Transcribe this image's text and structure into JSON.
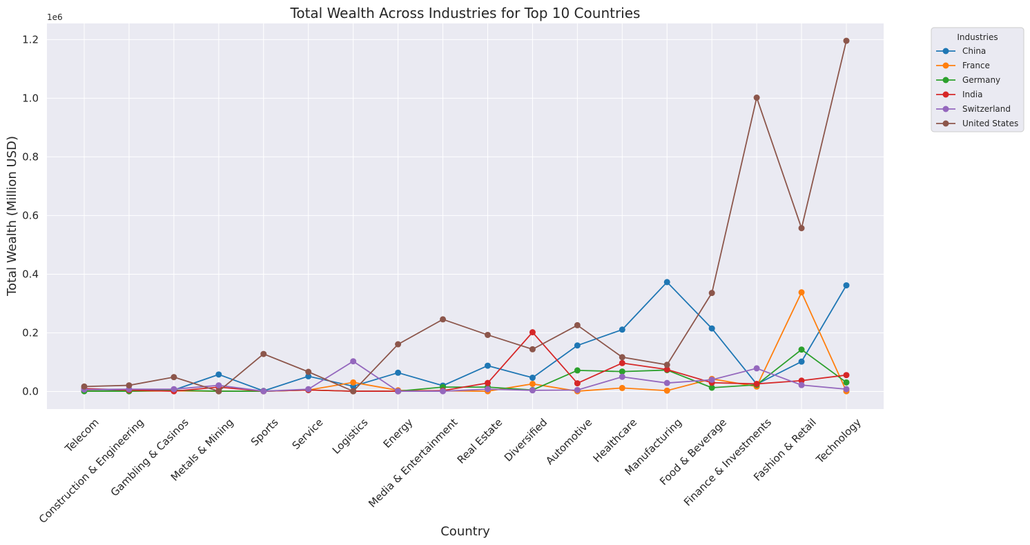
{
  "chart_data": {
    "type": "line",
    "title": "Total Wealth Across Industries for Top 10 Countries",
    "xlabel": "Country",
    "ylabel": "Total Wealth (Million USD)",
    "y_offset_label": "1e6",
    "y_ticks": [
      0.0,
      0.2,
      0.4,
      0.6,
      0.8,
      1.0,
      1.2
    ],
    "ylim": [
      -60000,
      1255000
    ],
    "grid": true,
    "legend": {
      "title": "Industries",
      "placement": "outside upper right"
    },
    "categories": [
      "Telecom",
      "Construction & Engineering",
      "Gambling & Casinos",
      "Metals & Mining",
      "Sports",
      "Service",
      "Logistics",
      "Energy",
      "Media & Entertainment",
      "Real Estate",
      "Diversified",
      "Automotive",
      "Healthcare",
      "Manufacturing",
      "Food & Beverage",
      "Finance & Investments",
      "Fashion & Retail",
      "Technology"
    ],
    "series": [
      {
        "name": "China",
        "color": "#1f77b4",
        "values": [
          3000,
          3000,
          5000,
          58000,
          2000,
          52000,
          18000,
          64000,
          20000,
          88000,
          47000,
          157000,
          211000,
          373000,
          215000,
          25000,
          102000,
          362000
        ]
      },
      {
        "name": "France",
        "color": "#ff7f0e",
        "values": [
          2000,
          1000,
          2000,
          1000,
          1000,
          5000,
          31000,
          4000,
          2000,
          1000,
          26000,
          1000,
          12000,
          3000,
          43000,
          17000,
          338000,
          1000
        ]
      },
      {
        "name": "Germany",
        "color": "#2ca02c",
        "values": [
          1000,
          1000,
          4000,
          1000,
          1000,
          5000,
          1000,
          1000,
          15000,
          15000,
          5000,
          72000,
          68000,
          73000,
          13000,
          23000,
          143000,
          31000
        ]
      },
      {
        "name": "India",
        "color": "#d62728",
        "values": [
          10000,
          5000,
          1000,
          15000,
          1000,
          5000,
          1000,
          1000,
          3000,
          29000,
          202000,
          28000,
          97000,
          75000,
          30000,
          26000,
          37000,
          56000
        ]
      },
      {
        "name": "Switzerland",
        "color": "#9467bd",
        "values": [
          7000,
          8000,
          8000,
          21000,
          1000,
          8000,
          103000,
          1000,
          1000,
          8000,
          4000,
          5000,
          50000,
          29000,
          40000,
          79000,
          22000,
          8000
        ]
      },
      {
        "name": "United States",
        "color": "#8c564b",
        "values": [
          17000,
          21000,
          49000,
          1000,
          128000,
          67000,
          1000,
          161000,
          246000,
          193000,
          144000,
          226000,
          117000,
          91000,
          336000,
          1002000,
          557000,
          1196000
        ]
      }
    ]
  }
}
